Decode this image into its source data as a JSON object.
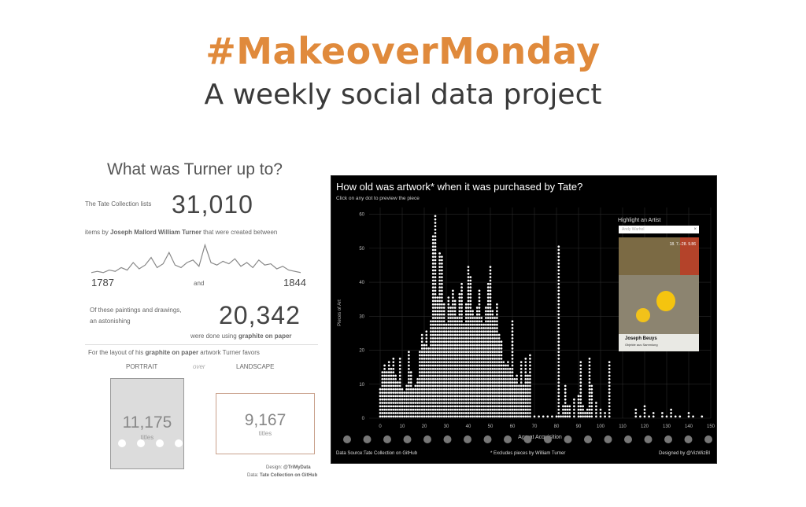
{
  "header": {
    "title": "#MakeoverMonday",
    "subtitle": "A weekly social data project",
    "title_color": "#e08a3c"
  },
  "left_panel": {
    "title": "What was Turner up to?",
    "lists_label": "The Tate Collection lists",
    "total": "31,010",
    "items_line_prefix": "items by",
    "artist": "Joseph Mallord William Turner",
    "items_line_suffix": "that were created between",
    "start_year": "1787",
    "and_label": "and",
    "end_year": "1844",
    "these_line1": "Of these paintings and drawings,",
    "these_line2": "an astonishing",
    "graphite_total": "20,342",
    "graphite_prefix": "were done using",
    "graphite_label": "graphite on paper",
    "layout_prefix": "For the layout of his",
    "layout_graphite": "graphite on paper",
    "layout_suffix": "artwork Turner favors",
    "portrait_label": "PORTRAIT",
    "over_label": "over",
    "landscape_label": "LANDSCAPE",
    "portrait_count": "11,175",
    "portrait_unit": "titles",
    "landscape_count": "9,167",
    "landscape_unit": "titles",
    "design_label": "Design:",
    "design_credit": "@TriMyData",
    "data_label": "Data:",
    "data_credit": "Tate Collection on GitHub",
    "sparkline_color": "#888888"
  },
  "right_panel": {
    "title": "How old was artwork* when it was purchased by Tate?",
    "subtitle": "Click on any dot to preview the piece",
    "highlight_label": "Highlight an Artist",
    "search_placeholder": "Andy Warhol",
    "search_clear": "×",
    "poster_artist": "Joseph Beuys",
    "poster_caption": "Objekte aus Sammlung",
    "poster_date": "18. 7.–28. 9.86",
    "footer_source": "Data Source:Tate Collection on GitHub",
    "footer_note": "* Excludes pieces by William Turner",
    "footer_designer": "Designed by @VizWizBI",
    "dot_color": "#ffffff",
    "background": "#000000"
  },
  "chart_data": {
    "type": "scatter",
    "title": "How old was artwork* when it was purchased by Tate?",
    "xlabel": "Age at Acquisition",
    "ylabel": "Pieces of Art",
    "xlim": [
      -5,
      150
    ],
    "ylim": [
      0,
      62
    ],
    "x_ticks": [
      0,
      10,
      20,
      30,
      40,
      50,
      60,
      70,
      80,
      90,
      100,
      110,
      120,
      130,
      140,
      150
    ],
    "y_ticks": [
      0,
      10,
      20,
      30,
      40,
      50,
      60
    ],
    "grid": true,
    "x": [
      0,
      1,
      2,
      3,
      4,
      5,
      6,
      7,
      8,
      9,
      10,
      11,
      12,
      13,
      14,
      15,
      16,
      17,
      18,
      19,
      20,
      21,
      22,
      23,
      24,
      25,
      26,
      27,
      28,
      29,
      30,
      31,
      32,
      33,
      34,
      35,
      36,
      37,
      38,
      39,
      40,
      41,
      42,
      43,
      44,
      45,
      46,
      47,
      48,
      49,
      50,
      51,
      52,
      53,
      54,
      55,
      56,
      57,
      58,
      59,
      60,
      61,
      62,
      63,
      64,
      65,
      66,
      67,
      68,
      70,
      72,
      74,
      76,
      78,
      80,
      81,
      82,
      83,
      84,
      85,
      86,
      88,
      90,
      91,
      92,
      93,
      94,
      95,
      96,
      98,
      100,
      102,
      104,
      116,
      118,
      120,
      122,
      124,
      128,
      130,
      132,
      134,
      136,
      140,
      142,
      146
    ],
    "y": [
      9,
      14,
      16,
      14,
      17,
      15,
      18,
      13,
      11,
      18,
      9,
      8,
      10,
      20,
      14,
      9,
      10,
      12,
      20,
      25,
      22,
      26,
      21,
      29,
      54,
      60,
      36,
      49,
      48,
      34,
      28,
      36,
      33,
      38,
      35,
      30,
      37,
      40,
      28,
      34,
      45,
      42,
      32,
      30,
      33,
      38,
      30,
      28,
      33,
      40,
      45,
      32,
      30,
      34,
      25,
      23,
      17,
      16,
      17,
      15,
      29,
      12,
      13,
      10,
      17,
      10,
      18,
      13,
      19,
      1,
      1,
      1,
      1,
      1,
      1,
      51,
      1,
      4,
      10,
      4,
      4,
      6,
      7,
      17,
      4,
      2,
      3,
      18,
      10,
      5,
      3,
      2,
      17,
      3,
      1,
      4,
      1,
      2,
      2,
      1,
      3,
      1,
      1,
      2,
      1,
      1
    ]
  }
}
